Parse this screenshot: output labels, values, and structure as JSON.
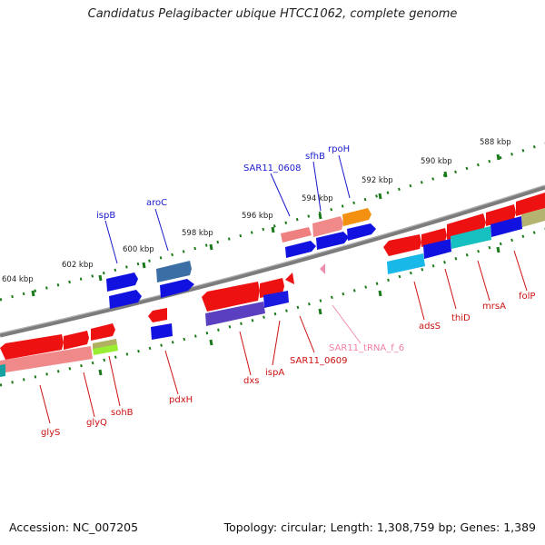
{
  "title": "Candidatus Pelagibacter ubique HTCC1062, complete genome",
  "footer": {
    "accession": "Accession: NC_007205",
    "summary": "Topology: circular; Length: 1,308,759 bp; Genes: 1,389"
  },
  "colors": {
    "forward_gene": "#1010e6",
    "reverse_gene": "#ee1111",
    "forward_label": "#1a1acc",
    "reverse_label": "#cc1111",
    "trna": "#f090b0",
    "backbone": "#888888",
    "tick": "#1a7a1a"
  },
  "scale": {
    "ticks": [
      "604 kbp",
      "602 kbp",
      "600 kbp",
      "598 kbp",
      "596 kbp",
      "594 kbp",
      "592 kbp",
      "590 kbp",
      "588 kbp"
    ]
  },
  "genes_forward": [
    "ispB",
    "aroC",
    "SAR11_0608",
    "sfhB",
    "rpoH"
  ],
  "genes_reverse": [
    "glyS",
    "glyQ",
    "sohB",
    "pdxH",
    "dxs",
    "ispA",
    "SAR11_0609",
    "adsS",
    "thiD",
    "mrsA",
    "folP"
  ],
  "genes_rna": [
    "SAR11_tRNA_f_6"
  ]
}
